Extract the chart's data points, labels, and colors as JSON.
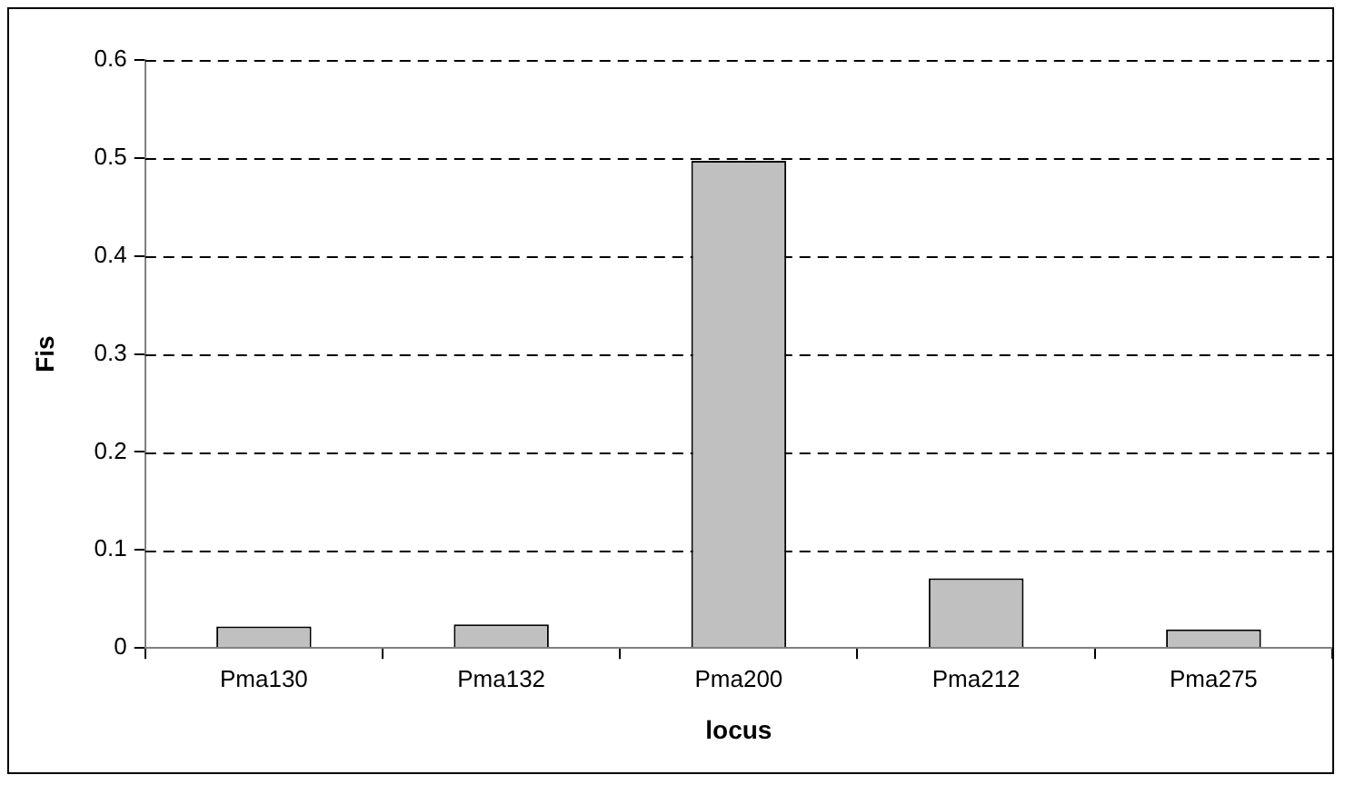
{
  "chart_data": {
    "type": "bar",
    "xlabel": "locus",
    "ylabel": "Fis",
    "categories": [
      "Pma130",
      "Pma132",
      "Pma200",
      "Pma212",
      "Pma275"
    ],
    "values": [
      0.022,
      0.024,
      0.497,
      0.071,
      0.019
    ],
    "color": "#c0c0c0",
    "ylim": [
      0,
      0.6
    ],
    "yticks": [
      0,
      0.1,
      0.2,
      0.3,
      0.4,
      0.5,
      0.6
    ],
    "grid": "y",
    "legend": false
  }
}
